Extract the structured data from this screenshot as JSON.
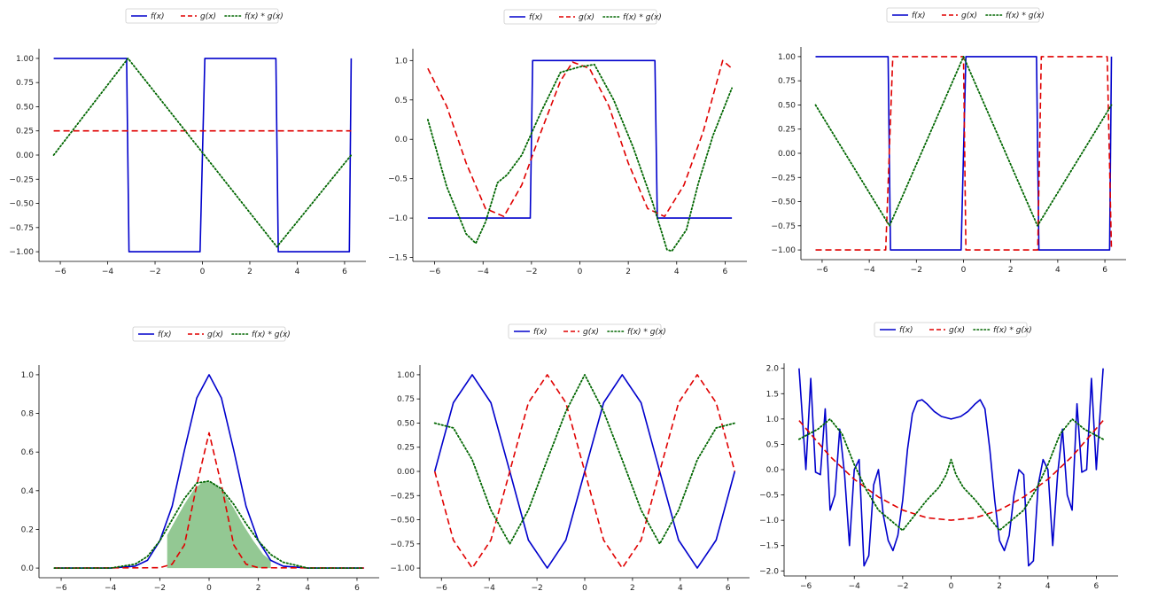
{
  "chart_data": [
    {
      "type": "line",
      "panel": "square-wave-vs-constant",
      "xlim": [
        -6.9,
        6.9
      ],
      "ylim": [
        -1.1,
        1.1
      ],
      "xticks": [
        -6,
        -4,
        -2,
        0,
        2,
        4,
        6
      ],
      "yticks": [
        -1.0,
        -0.75,
        -0.5,
        -0.25,
        0.0,
        0.25,
        0.5,
        0.75,
        1.0
      ],
      "ytick_decimals": 2,
      "legend": "top-center",
      "series": [
        {
          "name": "f(x)",
          "color": "#0000cc",
          "style": "solid",
          "x": [
            -6.28,
            -3.2,
            -3.1,
            -0.1,
            0.1,
            3.1,
            3.2,
            6.2,
            6.28
          ],
          "y": [
            1,
            1,
            -1,
            -1,
            1,
            1,
            -1,
            -1,
            1
          ]
        },
        {
          "name": "g(x)",
          "color": "#e00000",
          "style": "dashed",
          "x": [
            -6.28,
            6.28
          ],
          "y": [
            0.25,
            0.25
          ]
        },
        {
          "name": "f(x) * g(x)",
          "color": "#006600",
          "style": "dotted",
          "x": [
            -6.28,
            -3.14,
            3.14,
            6.28
          ],
          "y": [
            0,
            1,
            -0.95,
            0
          ]
        }
      ]
    },
    {
      "type": "line",
      "panel": "square-wave-vs-cosine",
      "xlim": [
        -6.9,
        6.9
      ],
      "ylim": [
        -1.55,
        1.15
      ],
      "xticks": [
        -6,
        -4,
        -2,
        0,
        2,
        4,
        6
      ],
      "yticks": [
        -1.5,
        -1.0,
        -0.5,
        0.0,
        0.5,
        1.0
      ],
      "ytick_decimals": 1,
      "legend": "top-center",
      "series": [
        {
          "name": "f(x)",
          "color": "#0000cc",
          "style": "solid",
          "x": [
            -6.28,
            -2.05,
            -1.95,
            3.1,
            3.2,
            6.28
          ],
          "y": [
            -1,
            -1,
            1,
            1,
            -1,
            -1
          ]
        },
        {
          "name": "g(x)",
          "color": "#e00000",
          "style": "dashed",
          "x": [
            -6.28,
            -5.5,
            -4.7,
            -3.9,
            -3.14,
            -2.4,
            -1.6,
            -0.8,
            -0.3,
            0.4,
            1.2,
            2.0,
            2.8,
            3.5,
            4.3,
            5.1,
            5.9,
            6.28
          ],
          "y": [
            0.9,
            0.42,
            -0.3,
            -0.88,
            -0.98,
            -0.58,
            0.1,
            0.74,
            0.98,
            0.9,
            0.42,
            -0.3,
            -0.88,
            -0.98,
            -0.58,
            0.1,
            1.0,
            0.9
          ]
        },
        {
          "name": "f(x) * g(x)",
          "color": "#006600",
          "style": "dotted",
          "x": [
            -6.28,
            -5.5,
            -4.7,
            -4.3,
            -3.9,
            -3.4,
            -3.0,
            -2.4,
            -1.6,
            -0.8,
            0.0,
            0.6,
            1.4,
            2.2,
            3.0,
            3.6,
            3.8,
            4.4,
            4.9,
            5.5,
            6.28
          ],
          "y": [
            0.25,
            -0.6,
            -1.2,
            -1.32,
            -1.05,
            -0.55,
            -0.45,
            -0.2,
            0.35,
            0.85,
            0.92,
            0.95,
            0.5,
            -0.1,
            -0.8,
            -1.4,
            -1.42,
            -1.15,
            -0.55,
            0.05,
            0.65
          ]
        }
      ]
    },
    {
      "type": "line",
      "panel": "two-square-waves",
      "xlim": [
        -6.9,
        6.9
      ],
      "ylim": [
        -1.1,
        1.1
      ],
      "xticks": [
        -6,
        -4,
        -2,
        0,
        2,
        4,
        6
      ],
      "yticks": [
        -1.0,
        -0.75,
        -0.5,
        -0.25,
        0.0,
        0.25,
        0.5,
        0.75,
        1.0
      ],
      "ytick_decimals": 2,
      "legend": "top-center",
      "series": [
        {
          "name": "f(x)",
          "color": "#0000cc",
          "style": "solid",
          "x": [
            -6.28,
            -3.2,
            -3.1,
            -0.1,
            0.1,
            3.1,
            3.2,
            6.2,
            6.28
          ],
          "y": [
            1,
            1,
            -1,
            -1,
            1,
            1,
            -1,
            -1,
            1
          ]
        },
        {
          "name": "g(x)",
          "color": "#e00000",
          "style": "dashed",
          "x": [
            -6.28,
            -3.3,
            -3.0,
            0.0,
            0.1,
            3.15,
            3.3,
            6.1,
            6.28
          ],
          "y": [
            -1,
            -1,
            1,
            1,
            -1,
            -1,
            1,
            1,
            -1
          ]
        },
        {
          "name": "f(x) * g(x)",
          "color": "#006600",
          "style": "dotted",
          "x": [
            -6.28,
            -3.14,
            0.0,
            3.14,
            6.28
          ],
          "y": [
            0.5,
            -0.75,
            1.0,
            -0.75,
            0.5
          ]
        }
      ]
    },
    {
      "type": "line",
      "panel": "gaussians",
      "xlim": [
        -6.9,
        6.9
      ],
      "ylim": [
        -0.05,
        1.05
      ],
      "xticks": [
        -6,
        -4,
        -2,
        0,
        2,
        4,
        6
      ],
      "yticks": [
        0.0,
        0.2,
        0.4,
        0.6,
        0.8,
        1.0
      ],
      "ytick_decimals": 1,
      "legend": "top-center",
      "fill": {
        "color": "#93c893",
        "x": [
          -1.7,
          -1.4,
          -1.0,
          -0.6,
          -0.2,
          0.2,
          0.6,
          1.0,
          1.4,
          1.8,
          2.2,
          2.5
        ],
        "y": [
          0.17,
          0.24,
          0.33,
          0.41,
          0.45,
          0.44,
          0.39,
          0.31,
          0.22,
          0.14,
          0.07,
          0.04
        ]
      },
      "series": [
        {
          "name": "f(x)",
          "color": "#0000cc",
          "style": "solid",
          "x": [
            -6.28,
            -4.0,
            -3.0,
            -2.5,
            -2.0,
            -1.5,
            -1.0,
            -0.5,
            0.0,
            0.5,
            1.0,
            1.5,
            2.0,
            2.5,
            3.0,
            4.0,
            6.28
          ],
          "y": [
            0,
            0,
            0.01,
            0.04,
            0.14,
            0.32,
            0.61,
            0.88,
            1.0,
            0.88,
            0.61,
            0.32,
            0.14,
            0.04,
            0.01,
            0,
            0
          ]
        },
        {
          "name": "g(x)",
          "color": "#e00000",
          "style": "dashed",
          "x": [
            -6.28,
            -2.0,
            -1.5,
            -1.0,
            -0.5,
            0.0,
            0.5,
            1.0,
            1.5,
            2.0,
            6.28
          ],
          "y": [
            0,
            0.002,
            0.02,
            0.12,
            0.43,
            0.7,
            0.43,
            0.12,
            0.02,
            0.002,
            0
          ]
        },
        {
          "name": "f(x) * g(x)",
          "color": "#006600",
          "style": "dotted",
          "x": [
            -6.28,
            -4.0,
            -3.0,
            -2.5,
            -2.0,
            -1.5,
            -1.0,
            -0.5,
            0.0,
            0.5,
            1.0,
            1.5,
            2.0,
            2.5,
            3.0,
            4.0,
            6.28
          ],
          "y": [
            0,
            0,
            0.02,
            0.06,
            0.14,
            0.25,
            0.36,
            0.44,
            0.45,
            0.41,
            0.33,
            0.23,
            0.14,
            0.07,
            0.03,
            0,
            0
          ]
        }
      ]
    },
    {
      "type": "line",
      "panel": "sine-cosine",
      "xlim": [
        -6.9,
        6.9
      ],
      "ylim": [
        -1.1,
        1.1
      ],
      "xticks": [
        -6,
        -4,
        -2,
        0,
        2,
        4,
        6
      ],
      "yticks": [
        -1.0,
        -0.75,
        -0.5,
        -0.25,
        0.0,
        0.25,
        0.5,
        0.75,
        1.0
      ],
      "ytick_decimals": 2,
      "legend": "top-center",
      "series": [
        {
          "name": "f(x)",
          "color": "#0000cc",
          "style": "solid",
          "x": [
            -6.28,
            -5.5,
            -4.71,
            -3.93,
            -3.14,
            -2.36,
            -1.57,
            -0.79,
            0,
            0.79,
            1.57,
            2.36,
            3.14,
            3.93,
            4.71,
            5.5,
            6.28
          ],
          "y": [
            0,
            0.71,
            1,
            0.71,
            0,
            -0.71,
            -1,
            -0.71,
            0,
            0.71,
            1,
            0.71,
            0,
            -0.71,
            -1,
            -0.71,
            0
          ]
        },
        {
          "name": "g(x)",
          "color": "#e00000",
          "style": "dashed",
          "x": [
            -6.28,
            -5.5,
            -4.71,
            -3.93,
            -3.14,
            -2.36,
            -1.57,
            -0.79,
            0,
            0.79,
            1.57,
            2.36,
            3.14,
            3.93,
            4.71,
            5.5,
            6.28
          ],
          "y": [
            0,
            -0.71,
            -1,
            -0.71,
            0,
            0.71,
            1,
            0.71,
            0,
            -0.71,
            -1,
            -0.71,
            0,
            0.71,
            1,
            0.71,
            0
          ]
        },
        {
          "name": "f(x) * g(x)",
          "color": "#006600",
          "style": "dotted",
          "x": [
            -6.28,
            -5.5,
            -4.71,
            -3.93,
            -3.14,
            -2.36,
            -1.57,
            -0.79,
            0,
            0.79,
            1.57,
            2.36,
            3.14,
            3.93,
            4.71,
            5.5,
            6.28
          ],
          "y": [
            0.5,
            0.45,
            0.12,
            -0.4,
            -0.75,
            -0.4,
            0.12,
            0.62,
            1.0,
            0.62,
            0.12,
            -0.4,
            -0.75,
            -0.4,
            0.12,
            0.45,
            0.5
          ]
        }
      ]
    },
    {
      "type": "line",
      "panel": "oscillating-vs-parabola",
      "xlim": [
        -6.9,
        6.9
      ],
      "ylim": [
        -2.1,
        2.1
      ],
      "xticks": [
        -6,
        -4,
        -2,
        0,
        2,
        4,
        6
      ],
      "yticks": [
        -2.0,
        -1.5,
        -1.0,
        -0.5,
        0.0,
        0.5,
        1.0,
        1.5,
        2.0
      ],
      "ytick_decimals": 1,
      "legend": "top-center",
      "series": [
        {
          "name": "f(x)",
          "color": "#0000cc",
          "style": "solid",
          "x": [
            -6.28,
            -6.0,
            -5.8,
            -5.6,
            -5.4,
            -5.2,
            -5.0,
            -4.8,
            -4.6,
            -4.4,
            -4.2,
            -4.0,
            -3.8,
            -3.6,
            -3.4,
            -3.2,
            -3.0,
            -2.8,
            -2.6,
            -2.4,
            -2.2,
            -2.0,
            -1.8,
            -1.6,
            -1.4,
            -1.2,
            -1.0,
            -0.7,
            -0.4,
            0.0,
            0.4,
            0.7,
            1.0,
            1.2,
            1.4,
            1.6,
            1.8,
            2.0,
            2.2,
            2.4,
            2.6,
            2.8,
            3.0,
            3.2,
            3.4,
            3.6,
            3.8,
            4.0,
            4.2,
            4.4,
            4.6,
            4.8,
            5.0,
            5.2,
            5.4,
            5.6,
            5.8,
            6.0,
            6.28
          ],
          "y": [
            2.0,
            0.0,
            1.8,
            -0.05,
            -0.1,
            1.2,
            -0.8,
            -0.5,
            0.8,
            -0.1,
            -1.5,
            0.0,
            0.2,
            -1.9,
            -1.7,
            -0.3,
            0.0,
            -0.9,
            -1.4,
            -1.6,
            -1.3,
            -0.6,
            0.4,
            1.1,
            1.35,
            1.38,
            1.3,
            1.15,
            1.05,
            1.0,
            1.05,
            1.15,
            1.3,
            1.38,
            1.2,
            0.4,
            -0.6,
            -1.4,
            -1.6,
            -1.3,
            -0.5,
            0.0,
            -0.1,
            -1.9,
            -1.8,
            -0.3,
            0.2,
            0.0,
            -1.5,
            -0.1,
            0.8,
            -0.5,
            -0.8,
            1.3,
            -0.05,
            0.0,
            1.8,
            0.0,
            2.0
          ]
        },
        {
          "name": "g(x)",
          "color": "#e00000",
          "style": "dashed",
          "x": [
            -6.28,
            -5.0,
            -4.0,
            -3.0,
            -2.0,
            -1.0,
            0,
            1.0,
            2.0,
            3.0,
            4.0,
            5.0,
            6.28
          ],
          "y": [
            0.97,
            0.26,
            -0.19,
            -0.54,
            -0.8,
            -0.95,
            -1.0,
            -0.95,
            -0.8,
            -0.54,
            -0.19,
            0.26,
            0.97
          ]
        },
        {
          "name": "f(x) * g(x)",
          "color": "#006600",
          "style": "dotted",
          "x": [
            -6.28,
            -5.5,
            -5.0,
            -4.5,
            -4.0,
            -3.5,
            -3.0,
            -2.5,
            -2.0,
            -1.5,
            -1.0,
            -0.5,
            -0.2,
            0,
            0.2,
            0.5,
            1.0,
            1.5,
            2.0,
            2.5,
            3.0,
            3.5,
            4.0,
            4.5,
            5.0,
            5.5,
            6.28
          ],
          "y": [
            0.6,
            0.8,
            1.0,
            0.7,
            0.1,
            -0.4,
            -0.8,
            -1.0,
            -1.2,
            -0.9,
            -0.6,
            -0.35,
            -0.1,
            0.2,
            -0.1,
            -0.35,
            -0.6,
            -0.9,
            -1.2,
            -1.0,
            -0.8,
            -0.4,
            0.1,
            0.7,
            1.0,
            0.8,
            0.6
          ]
        }
      ]
    }
  ]
}
